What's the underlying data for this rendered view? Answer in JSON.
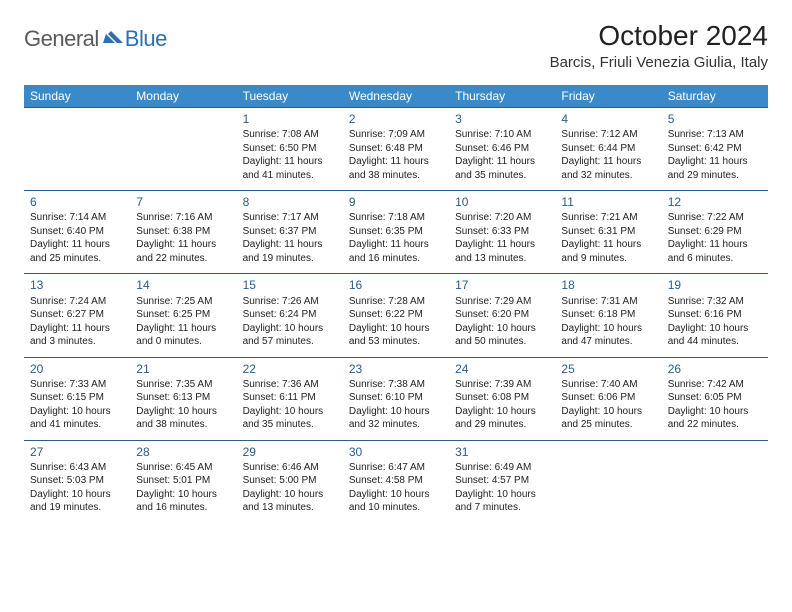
{
  "brand": {
    "general": "General",
    "blue": "Blue"
  },
  "title": "October 2024",
  "location": "Barcis, Friuli Venezia Giulia, Italy",
  "colors": {
    "header_bg": "#3a8ac9",
    "header_text": "#ffffff",
    "row_divider": "#2b5c8a",
    "daynum": "#2b5c8a",
    "body_text": "#222222",
    "logo_gray": "#5a5a5a",
    "logo_blue": "#2f6fb0"
  },
  "days_of_week": [
    "Sunday",
    "Monday",
    "Tuesday",
    "Wednesday",
    "Thursday",
    "Friday",
    "Saturday"
  ],
  "weeks": [
    [
      null,
      null,
      {
        "n": "1",
        "sunrise": "7:08 AM",
        "sunset": "6:50 PM",
        "day_h": "11",
        "day_m": "41"
      },
      {
        "n": "2",
        "sunrise": "7:09 AM",
        "sunset": "6:48 PM",
        "day_h": "11",
        "day_m": "38"
      },
      {
        "n": "3",
        "sunrise": "7:10 AM",
        "sunset": "6:46 PM",
        "day_h": "11",
        "day_m": "35"
      },
      {
        "n": "4",
        "sunrise": "7:12 AM",
        "sunset": "6:44 PM",
        "day_h": "11",
        "day_m": "32"
      },
      {
        "n": "5",
        "sunrise": "7:13 AM",
        "sunset": "6:42 PM",
        "day_h": "11",
        "day_m": "29"
      }
    ],
    [
      {
        "n": "6",
        "sunrise": "7:14 AM",
        "sunset": "6:40 PM",
        "day_h": "11",
        "day_m": "25"
      },
      {
        "n": "7",
        "sunrise": "7:16 AM",
        "sunset": "6:38 PM",
        "day_h": "11",
        "day_m": "22"
      },
      {
        "n": "8",
        "sunrise": "7:17 AM",
        "sunset": "6:37 PM",
        "day_h": "11",
        "day_m": "19"
      },
      {
        "n": "9",
        "sunrise": "7:18 AM",
        "sunset": "6:35 PM",
        "day_h": "11",
        "day_m": "16"
      },
      {
        "n": "10",
        "sunrise": "7:20 AM",
        "sunset": "6:33 PM",
        "day_h": "11",
        "day_m": "13"
      },
      {
        "n": "11",
        "sunrise": "7:21 AM",
        "sunset": "6:31 PM",
        "day_h": "11",
        "day_m": "9"
      },
      {
        "n": "12",
        "sunrise": "7:22 AM",
        "sunset": "6:29 PM",
        "day_h": "11",
        "day_m": "6"
      }
    ],
    [
      {
        "n": "13",
        "sunrise": "7:24 AM",
        "sunset": "6:27 PM",
        "day_h": "11",
        "day_m": "3"
      },
      {
        "n": "14",
        "sunrise": "7:25 AM",
        "sunset": "6:25 PM",
        "day_h": "11",
        "day_m": "0"
      },
      {
        "n": "15",
        "sunrise": "7:26 AM",
        "sunset": "6:24 PM",
        "day_h": "10",
        "day_m": "57"
      },
      {
        "n": "16",
        "sunrise": "7:28 AM",
        "sunset": "6:22 PM",
        "day_h": "10",
        "day_m": "53"
      },
      {
        "n": "17",
        "sunrise": "7:29 AM",
        "sunset": "6:20 PM",
        "day_h": "10",
        "day_m": "50"
      },
      {
        "n": "18",
        "sunrise": "7:31 AM",
        "sunset": "6:18 PM",
        "day_h": "10",
        "day_m": "47"
      },
      {
        "n": "19",
        "sunrise": "7:32 AM",
        "sunset": "6:16 PM",
        "day_h": "10",
        "day_m": "44"
      }
    ],
    [
      {
        "n": "20",
        "sunrise": "7:33 AM",
        "sunset": "6:15 PM",
        "day_h": "10",
        "day_m": "41"
      },
      {
        "n": "21",
        "sunrise": "7:35 AM",
        "sunset": "6:13 PM",
        "day_h": "10",
        "day_m": "38"
      },
      {
        "n": "22",
        "sunrise": "7:36 AM",
        "sunset": "6:11 PM",
        "day_h": "10",
        "day_m": "35"
      },
      {
        "n": "23",
        "sunrise": "7:38 AM",
        "sunset": "6:10 PM",
        "day_h": "10",
        "day_m": "32"
      },
      {
        "n": "24",
        "sunrise": "7:39 AM",
        "sunset": "6:08 PM",
        "day_h": "10",
        "day_m": "29"
      },
      {
        "n": "25",
        "sunrise": "7:40 AM",
        "sunset": "6:06 PM",
        "day_h": "10",
        "day_m": "25"
      },
      {
        "n": "26",
        "sunrise": "7:42 AM",
        "sunset": "6:05 PM",
        "day_h": "10",
        "day_m": "22"
      }
    ],
    [
      {
        "n": "27",
        "sunrise": "6:43 AM",
        "sunset": "5:03 PM",
        "day_h": "10",
        "day_m": "19"
      },
      {
        "n": "28",
        "sunrise": "6:45 AM",
        "sunset": "5:01 PM",
        "day_h": "10",
        "day_m": "16"
      },
      {
        "n": "29",
        "sunrise": "6:46 AM",
        "sunset": "5:00 PM",
        "day_h": "10",
        "day_m": "13"
      },
      {
        "n": "30",
        "sunrise": "6:47 AM",
        "sunset": "4:58 PM",
        "day_h": "10",
        "day_m": "10"
      },
      {
        "n": "31",
        "sunrise": "6:49 AM",
        "sunset": "4:57 PM",
        "day_h": "10",
        "day_m": "7"
      },
      null,
      null
    ]
  ],
  "labels": {
    "sunrise": "Sunrise:",
    "sunset": "Sunset:",
    "daylight": "Daylight:",
    "hours": "hours",
    "and": "and",
    "minutes": "minutes."
  }
}
